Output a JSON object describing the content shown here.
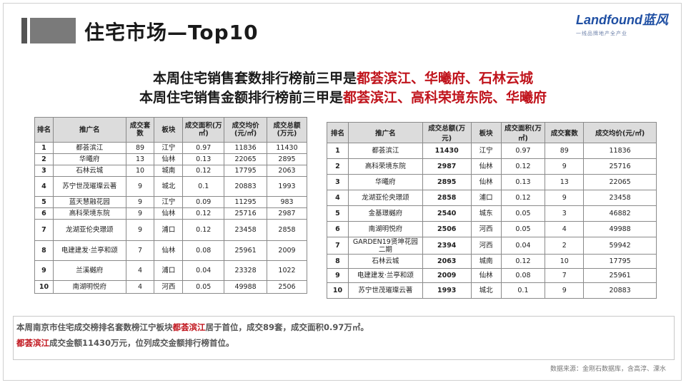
{
  "header": {
    "title": "住宅市场—Top10",
    "logo_text": "Landfound蓝风",
    "logo_sub": "一线品牌地产全产业"
  },
  "headline1": {
    "prefix": "本周住宅销售套数排行榜前三甲是",
    "highlight": "都荟滨江、华曦府、石林云城"
  },
  "headline2": {
    "prefix": "本周住宅销售金额排行榜前三甲是",
    "highlight": "都荟滨江、高科荣境东院、华曦府"
  },
  "table1": {
    "headers": [
      "排名",
      "推广名",
      "成交套数",
      "板块",
      "成交面积(万㎡)",
      "成交均价(元/㎡)",
      "成交总额(万元)"
    ],
    "rows": [
      [
        "1",
        "都荟滨江",
        "89",
        "江宁",
        "0.97",
        "11836",
        "11430"
      ],
      [
        "2",
        "华曦府",
        "13",
        "仙林",
        "0.13",
        "22065",
        "2895"
      ],
      [
        "3",
        "石林云城",
        "10",
        "城南",
        "0.12",
        "17795",
        "2063"
      ],
      [
        "4",
        "苏宁世茂璀璨云著",
        "9",
        "城北",
        "0.1",
        "20883",
        "1993"
      ],
      [
        "5",
        "蓝天慧融花园",
        "9",
        "江宁",
        "0.09",
        "11295",
        "983"
      ],
      [
        "6",
        "高科荣境东院",
        "9",
        "仙林",
        "0.12",
        "25716",
        "2987"
      ],
      [
        "7",
        "龙湖亚伦央璟颂",
        "9",
        "浦口",
        "0.12",
        "23458",
        "2858"
      ],
      [
        "8",
        "电建建发·兰亭和颂",
        "7",
        "仙林",
        "0.08",
        "25961",
        "2009"
      ],
      [
        "9",
        "兰溪樾府",
        "4",
        "浦口",
        "0.04",
        "23328",
        "1022"
      ],
      [
        "10",
        "南湖明悦府",
        "4",
        "河西",
        "0.05",
        "49988",
        "2506"
      ]
    ]
  },
  "table2": {
    "headers": [
      "排名",
      "推广名",
      "成交总额(万元)",
      "板块",
      "成交面积(万㎡)",
      "成交套数",
      "成交均价(元/㎡)"
    ],
    "rows": [
      [
        "1",
        "都荟滨江",
        "11430",
        "江宁",
        "0.97",
        "89",
        "11836"
      ],
      [
        "2",
        "高科荣境东院",
        "2987",
        "仙林",
        "0.12",
        "9",
        "25716"
      ],
      [
        "3",
        "华曦府",
        "2895",
        "仙林",
        "0.13",
        "13",
        "22065"
      ],
      [
        "4",
        "龙湖亚伦央璟颂",
        "2858",
        "浦口",
        "0.12",
        "9",
        "23458"
      ],
      [
        "5",
        "金基璟樾府",
        "2540",
        "城东",
        "0.05",
        "3",
        "46882"
      ],
      [
        "6",
        "南湖明悦府",
        "2506",
        "河西",
        "0.05",
        "4",
        "49988"
      ],
      [
        "7",
        "GARDEN19贤坤花园二期",
        "2394",
        "河西",
        "0.04",
        "2",
        "59942"
      ],
      [
        "8",
        "石林云城",
        "2063",
        "城南",
        "0.12",
        "10",
        "17795"
      ],
      [
        "9",
        "电建建发·兰亭和颂",
        "2009",
        "仙林",
        "0.08",
        "7",
        "25961"
      ],
      [
        "10",
        "苏宁世茂璀璨云著",
        "1993",
        "城北",
        "0.1",
        "9",
        "20883"
      ]
    ]
  },
  "note": {
    "line1_a": "本周南京市住宅成交榜排名套数榜江宁板块",
    "line1_hl": "都荟滨江",
    "line1_b": "居于首位，成交89套，成交面积0.97万㎡。",
    "line2_hl": "都荟滨江",
    "line2_b": "成交金额11430万元，位列成交金额排行榜首位。"
  },
  "source": "数据来源：金刚石数据库，含高淳、溧水"
}
